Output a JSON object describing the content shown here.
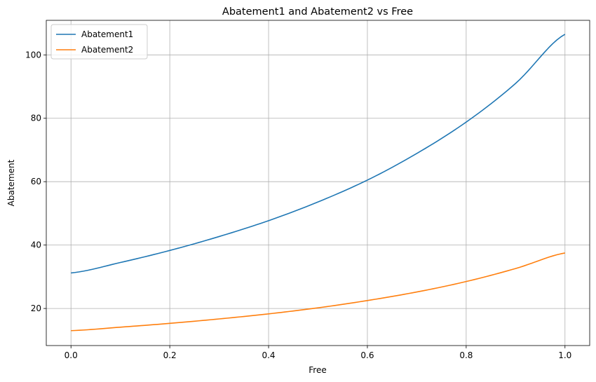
{
  "chart_data": {
    "type": "line",
    "title": "Abatement1 and Abatement2 vs Free",
    "xlabel": "Free",
    "ylabel": "Abatement",
    "xlim": [
      -0.05,
      1.05
    ],
    "ylim": [
      8.3,
      110.9
    ],
    "xticks": [
      0.0,
      0.2,
      0.4,
      0.6,
      0.8,
      1.0
    ],
    "xtick_labels": [
      "0.0",
      "0.2",
      "0.4",
      "0.6",
      "0.8",
      "1.0"
    ],
    "yticks": [
      20,
      40,
      60,
      80,
      100
    ],
    "ytick_labels": [
      "20",
      "40",
      "60",
      "80",
      "100"
    ],
    "grid": true,
    "legend_position": "upper-left",
    "x": [
      0.0,
      0.1,
      0.2,
      0.3,
      0.4,
      0.5,
      0.6,
      0.7,
      0.8,
      0.9,
      1.0
    ],
    "series": [
      {
        "name": "Abatement1",
        "color": "#1f77b4",
        "values": [
          31.2,
          34.5,
          38.3,
          42.7,
          47.7,
          53.6,
          60.5,
          68.9,
          78.8,
          91.0,
          106.5
        ]
      },
      {
        "name": "Abatement2",
        "color": "#ff7f0e",
        "values": [
          13.0,
          14.1,
          15.3,
          16.7,
          18.3,
          20.2,
          22.5,
          25.2,
          28.5,
          32.6,
          37.5
        ]
      }
    ]
  }
}
